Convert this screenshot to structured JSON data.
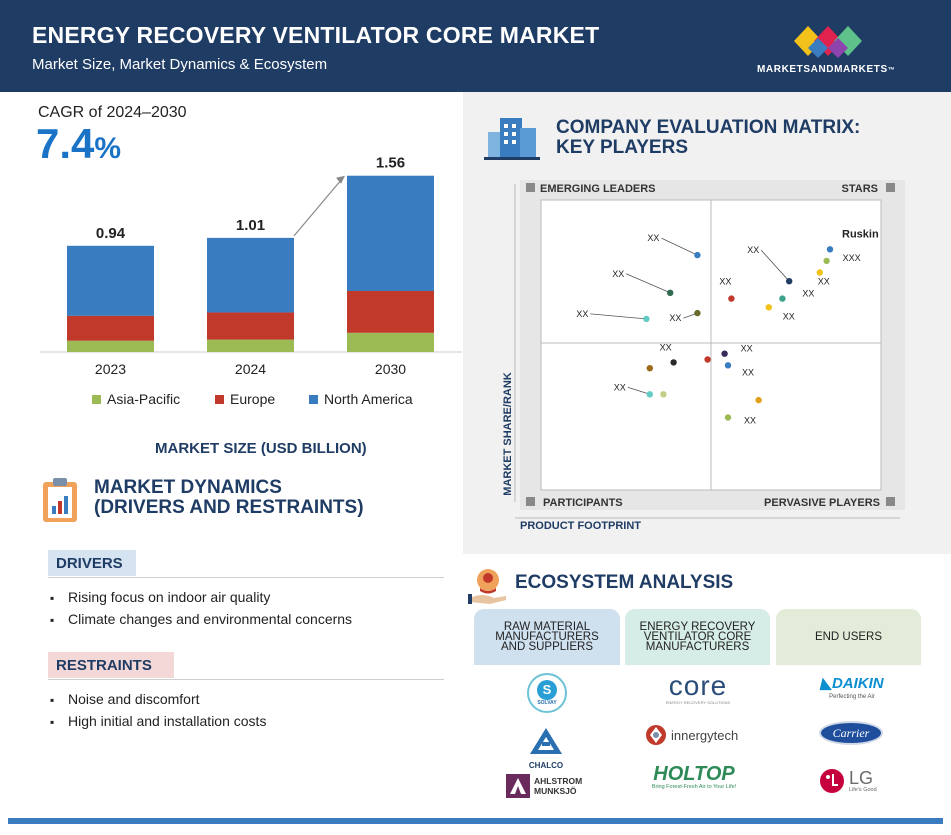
{
  "header": {
    "title": "ENERGY RECOVERY VENTILATOR CORE MARKET",
    "subtitle": "Market Size, Market Dynamics & Ecosystem",
    "logo_text": "MARKETSANDMARKETS",
    "logo_tm": "™"
  },
  "cagr": {
    "label": "CAGR of 2024–2030",
    "value": "7.4",
    "unit": "%"
  },
  "chart_data": {
    "type": "bar",
    "stacked": true,
    "categories": [
      "2023",
      "2024",
      "2030"
    ],
    "totals": [
      "0.94",
      "1.01",
      "1.56"
    ],
    "total_values": [
      0.94,
      1.01,
      1.56
    ],
    "series": [
      {
        "name": "Asia-Pacific",
        "color": "#9dbb54",
        "values": [
          0.1,
          0.11,
          0.17
        ]
      },
      {
        "name": "Europe",
        "color": "#c0392b",
        "values": [
          0.22,
          0.24,
          0.37
        ]
      },
      {
        "name": "North America",
        "color": "#3a7cc0",
        "values": [
          0.62,
          0.66,
          1.02
        ]
      }
    ],
    "xlabel": "MARKET SIZE (USD BILLION)",
    "ylim": [
      0,
      1.6
    ]
  },
  "dynamics": {
    "title_line1": "MARKET DYNAMICS",
    "title_line2": "(DRIVERS AND RESTRAINTS)",
    "drivers_label": "DRIVERS",
    "drivers": [
      "Rising focus on indoor air quality",
      "Climate changes and environmental concerns"
    ],
    "restraints_label": "RESTRAINTS",
    "restraints": [
      "Noise and discomfort",
      "High initial and installation costs"
    ]
  },
  "matrix": {
    "title_line1": "COMPANY EVALUATION MATRIX:",
    "title_line2": "KEY PLAYERS",
    "quadrants": {
      "tl": "EMERGING LEADERS",
      "tr": "STARS",
      "bl": "PARTICIPANTS",
      "br": "PERVASIVE PLAYERS"
    },
    "y_axis": "MARKET SHARE/RANK",
    "x_axis": "PRODUCT FOOTPRINT",
    "points": [
      {
        "label": "Ruskin",
        "color": "#3a7cc0",
        "x": 0.85,
        "y": 0.83
      },
      {
        "label": "XXX",
        "color": "#9dbb54",
        "x": 0.84,
        "y": 0.79
      },
      {
        "label": "XX",
        "color": "#f2c21b",
        "x": 0.82,
        "y": 0.75
      },
      {
        "label": "XX",
        "color": "#1f3c64",
        "x": 0.73,
        "y": 0.72
      },
      {
        "label": "XX",
        "color": "#c0392b",
        "x": 0.56,
        "y": 0.66
      },
      {
        "label": "XX",
        "color": "#3aa38a",
        "x": 0.71,
        "y": 0.66
      },
      {
        "label": "XX",
        "color": "#f2c21b",
        "x": 0.67,
        "y": 0.63
      },
      {
        "label": "XX",
        "color": "#3a7cc0",
        "x": 0.46,
        "y": 0.81
      },
      {
        "label": "XX",
        "color": "#2e6b4f",
        "x": 0.38,
        "y": 0.68
      },
      {
        "label": "XX",
        "color": "#6b6b2e",
        "x": 0.46,
        "y": 0.61
      },
      {
        "label": "XX",
        "color": "#62cbc4",
        "x": 0.31,
        "y": 0.59
      },
      {
        "label": "XX",
        "color": "#3a2a5c",
        "x": 0.54,
        "y": 0.47
      },
      {
        "label": "XX",
        "color": "#c0392b",
        "x": 0.49,
        "y": 0.45
      },
      {
        "label": "XX",
        "color": "#2a2a2a",
        "x": 0.39,
        "y": 0.44
      },
      {
        "label": "XX",
        "color": "#9a6a1a",
        "x": 0.32,
        "y": 0.42
      },
      {
        "label": "XX",
        "color": "#3a7cc0",
        "x": 0.55,
        "y": 0.43
      },
      {
        "label": "XX",
        "color": "#62cbc4",
        "x": 0.32,
        "y": 0.33
      },
      {
        "label": "XX",
        "color": "#c0d088",
        "x": 0.36,
        "y": 0.33
      },
      {
        "label": "XX",
        "color": "#e0a01a",
        "x": 0.64,
        "y": 0.31
      },
      {
        "label": "XX",
        "color": "#9dbb54",
        "x": 0.55,
        "y": 0.25
      }
    ]
  },
  "ecosystem": {
    "title": "ECOSYSTEM ANALYSIS",
    "columns": [
      {
        "head": [
          "RAW MATERIAL",
          "MANUFACTURERS",
          "AND SUPPLIERS"
        ],
        "logos": [
          "SOLVAY",
          "CHALCO",
          "AHLSTROM",
          "MUNKSJÖ"
        ]
      },
      {
        "head": [
          "ENERGY RECOVERY",
          "VENTILATOR CORE",
          "MANUFACTURERS"
        ],
        "logos": [
          "core",
          "ENERGY RECOVERY SOLUTIONS",
          "innergytech",
          "HOLTOP",
          "Bring Forest-Fresh Air to Your Life!"
        ]
      },
      {
        "head": [
          "END USERS"
        ],
        "logos": [
          "DAIKIN",
          "Perfecting the Air",
          "Carrier",
          "LG",
          "Life's Good"
        ]
      }
    ]
  }
}
